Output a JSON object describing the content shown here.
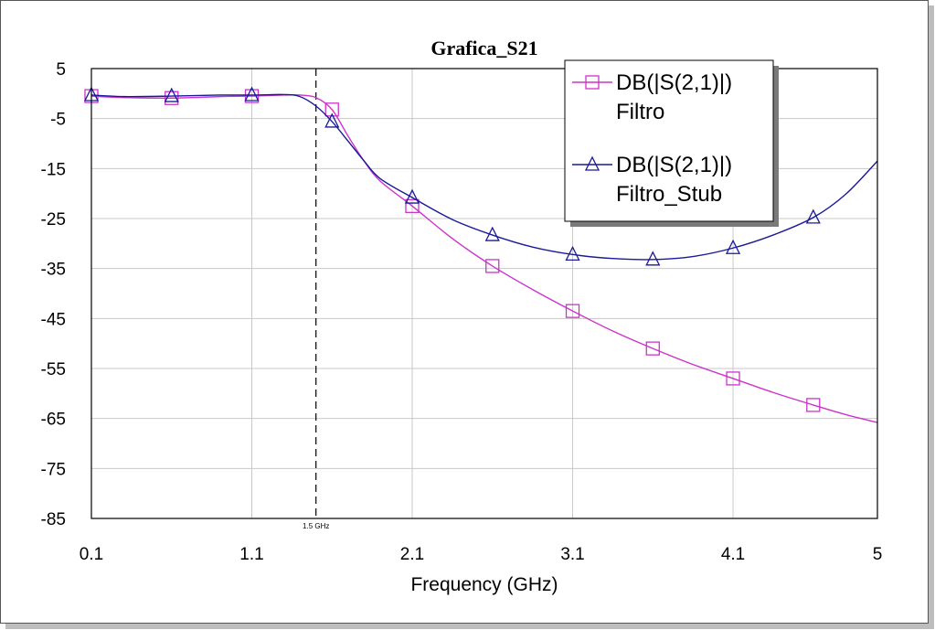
{
  "chart_data": {
    "type": "line",
    "title": "Grafica_S21",
    "xlabel": "Frequency (GHz)",
    "ylabel": "",
    "xlim": [
      0.1,
      5
    ],
    "ylim": [
      -85,
      5
    ],
    "x_ticks": [
      0.1,
      1.1,
      2.1,
      3.1,
      4.1,
      5
    ],
    "x_tick_labels": [
      "0.1",
      "1.1",
      "2.1",
      "3.1",
      "4.1",
      "5"
    ],
    "y_ticks": [
      5,
      -5,
      -15,
      -25,
      -35,
      -45,
      -55,
      -65,
      -75,
      -85
    ],
    "y_tick_labels": [
      "5",
      "-5",
      "-15",
      "-25",
      "-35",
      "-45",
      "-55",
      "-65",
      "-75",
      "-85"
    ],
    "grid": true,
    "legend_position": "top-right",
    "marker_line": {
      "x": 1.5,
      "label": "1.5 GHz"
    },
    "series": [
      {
        "name": "DB(|S(2,1)|)\nFiltro",
        "legend_lines": [
          "DB(|S(2,1)|)",
          "Filtro"
        ],
        "color": "#cc33cc",
        "marker": "square",
        "x": [
          0.1,
          0.3,
          0.6,
          0.9,
          1.1,
          1.3,
          1.4,
          1.5,
          1.6,
          1.7,
          1.8,
          1.9,
          2.1,
          2.35,
          2.6,
          2.85,
          3.1,
          3.35,
          3.6,
          3.85,
          4.1,
          4.35,
          4.6,
          4.8,
          5.0
        ],
        "values": [
          -0.5,
          -0.8,
          -0.9,
          -0.6,
          -0.5,
          -0.3,
          -0.3,
          -0.8,
          -3.2,
          -8.5,
          -13.5,
          -17.5,
          -22.5,
          -29.0,
          -34.5,
          -39.2,
          -43.5,
          -47.5,
          -51.0,
          -54.2,
          -57.0,
          -59.8,
          -62.3,
          -64.2,
          -65.8
        ],
        "markers_x": [
          0.1,
          0.6,
          1.1,
          1.6,
          2.1,
          2.6,
          3.1,
          3.6,
          4.1,
          4.6
        ]
      },
      {
        "name": "DB(|S(2,1)|)\nFiltro_Stub",
        "legend_lines": [
          "DB(|S(2,1)|)",
          "Filtro_Stub"
        ],
        "color": "#1a1a99",
        "marker": "triangle",
        "x": [
          0.1,
          0.3,
          0.6,
          0.9,
          1.1,
          1.3,
          1.4,
          1.5,
          1.6,
          1.7,
          1.8,
          1.9,
          2.1,
          2.35,
          2.6,
          2.85,
          3.1,
          3.35,
          3.6,
          3.85,
          4.1,
          4.35,
          4.6,
          4.8,
          5.0
        ],
        "values": [
          -0.3,
          -0.6,
          -0.5,
          -0.3,
          -0.3,
          -0.2,
          -0.6,
          -2.5,
          -5.6,
          -9.5,
          -13.5,
          -17.0,
          -20.8,
          -25.2,
          -28.3,
          -30.7,
          -32.2,
          -33.0,
          -33.2,
          -32.6,
          -30.9,
          -28.3,
          -24.8,
          -20.2,
          -13.5
        ],
        "markers_x": [
          0.1,
          0.6,
          1.1,
          1.6,
          2.1,
          2.6,
          3.1,
          3.6,
          4.1,
          4.6
        ]
      }
    ]
  }
}
